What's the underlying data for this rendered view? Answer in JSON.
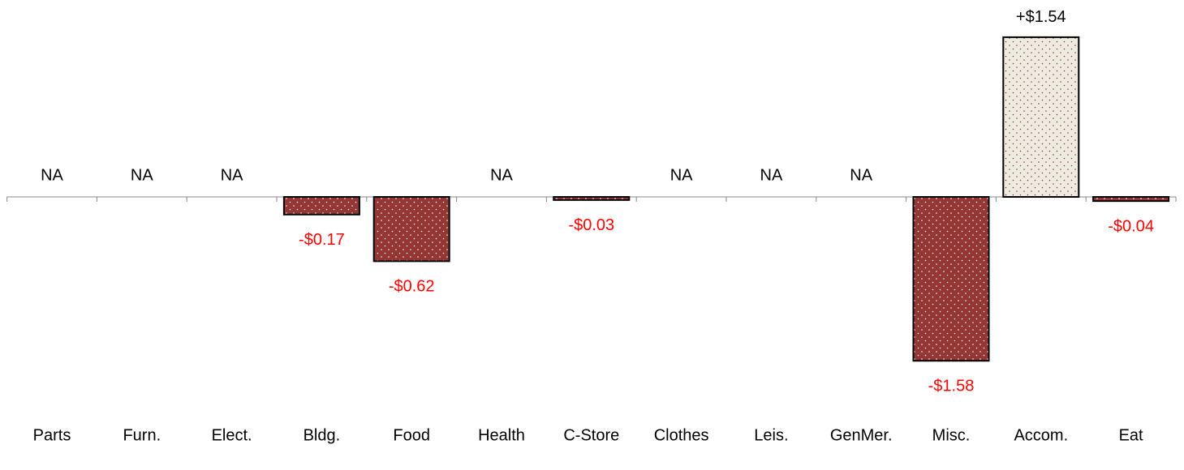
{
  "chart_data": {
    "type": "bar",
    "categories": [
      "Parts",
      "Furn.",
      "Elect.",
      "Bldg.",
      "Food",
      "Health",
      "C-Store",
      "Clothes",
      "Leis.",
      "GenMer.",
      "Misc.",
      "Accom.",
      "Eat"
    ],
    "values": [
      null,
      null,
      null,
      -0.17,
      -0.62,
      null,
      -0.03,
      null,
      null,
      null,
      -1.58,
      1.54,
      -0.04
    ],
    "value_labels": [
      "NA",
      "NA",
      "NA",
      "-$0.17",
      "-$0.62",
      "NA",
      "-$0.03",
      "NA",
      "NA",
      "NA",
      "-$1.58",
      "+$1.54",
      "-$0.04"
    ],
    "negative_color": "#943634",
    "positive_color": "#eeebe1",
    "negative_label_color": "#ff0000"
  }
}
